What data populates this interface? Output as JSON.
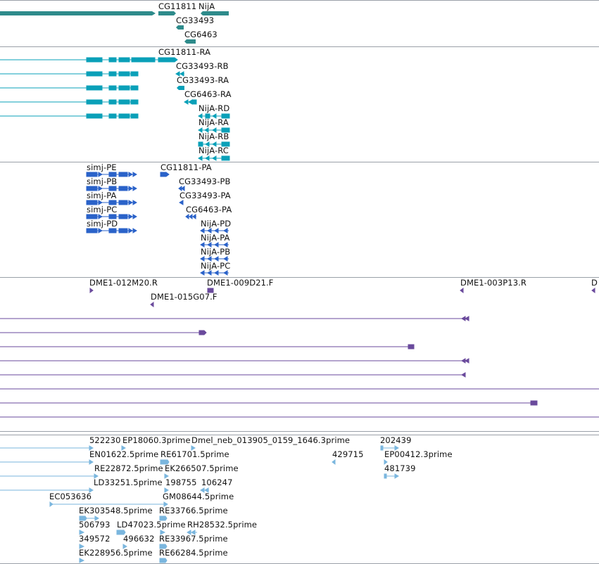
{
  "tracks": {
    "gene": {
      "color": "#2e8b8b",
      "labels": [
        "CG11811",
        "NijA",
        "CG33493",
        "CG6463"
      ]
    },
    "transcripts": {
      "color": "#0aa0b8",
      "labels": [
        "CG11811-RA",
        "CG33493-RB",
        "CG33493-RA",
        "CG6463-RA",
        "NijA-RD",
        "NijA-RA",
        "NijA-RB",
        "NijA-RC"
      ]
    },
    "proteins": {
      "color": "#2a62c9",
      "labels": [
        "simj-PE",
        "simj-PB",
        "simj-PA",
        "simj-PC",
        "simj-PD",
        "CG11811-PA",
        "CG33493-PB",
        "CG33493-PA",
        "CG6463-PA",
        "NijA-PD",
        "NijA-PA",
        "NijA-PB",
        "NijA-PC"
      ]
    },
    "clones": {
      "color": "#6a4a9c",
      "labels": [
        "DME1-012M20.R",
        "DME1-009D21.F",
        "DME1-003P13.R",
        "D",
        "DME1-015G07.F"
      ]
    },
    "ests": {
      "color": "#7ab6de",
      "labels": [
        "522230",
        "EP18060.3prime",
        "Dmel_neb_013905_0159_1646.3prime",
        "202439",
        "EN01622.5prime",
        "RE61701.5prime",
        "429715",
        "EP00412.3prime",
        "RE22872.5prime",
        "EK266507.5prime",
        "481739",
        "LD33251.5prime",
        "198755",
        "106247",
        "EC053636",
        "GM08644.5prime",
        "EK303548.5prime",
        "RE33766.5prime",
        "506793",
        "LD47023.5prime",
        "RH28532.5prime",
        "349572",
        "496632",
        "RE33967.5prime",
        "EK228956.5prime",
        "RE66284.5prime"
      ]
    }
  }
}
